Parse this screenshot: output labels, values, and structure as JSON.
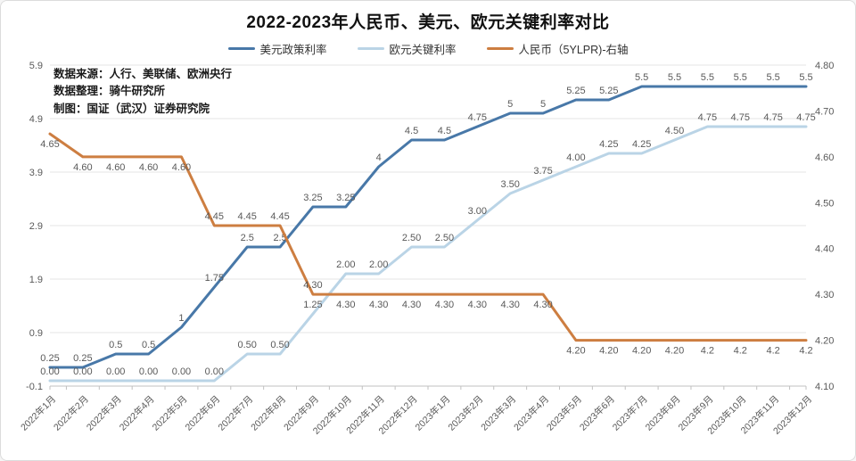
{
  "title": "2022-2023年人民币、美元、欧元关键利率对比",
  "annotation": {
    "source": "数据来源：人行、美联储、欧洲央行",
    "compiler": "数据整理：骑牛研究所",
    "author": "制图：国证（武汉）证券研究院"
  },
  "colors": {
    "usd_line": "#4878A8",
    "eur_line": "#BAD4E6",
    "rmb_line": "#CD7E41",
    "grid": "#E6E6E6",
    "axis": "#C0C0C0",
    "tick_text": "#595959",
    "label_text": "#595959"
  },
  "chart_data": {
    "type": "line",
    "title": "2022-2023年人民币、美元、欧元关键利率对比",
    "xlabel": "",
    "ylabel": "",
    "grid": "horizontal",
    "legend_position": "top",
    "categories": [
      "2022年1月",
      "2022年2月",
      "2022年3月",
      "2022年4月",
      "2022年5月",
      "2022年6月",
      "2022年7月",
      "2022年8月",
      "2022年9月",
      "2022年10月",
      "2022年11月",
      "2022年12月",
      "2023年1月",
      "2023年2月",
      "2023年3月",
      "2023年4月",
      "2023年5月",
      "2023年6月",
      "2023年7月",
      "2023年8月",
      "2023年9月",
      "2023年10月",
      "2023年11月",
      "2023年12月"
    ],
    "left_axis": {
      "min": -0.1,
      "max": 5.9,
      "ticks": [
        "5.9",
        "4.9",
        "3.9",
        "2.9",
        "1.9",
        "0.9",
        "-0.1"
      ]
    },
    "right_axis": {
      "min": 4.1,
      "max": 4.8,
      "ticks": [
        "4.80",
        "4.70",
        "4.60",
        "4.50",
        "4.40",
        "4.30",
        "4.20",
        "4.10"
      ]
    },
    "series": [
      {
        "name": "美元政策利率",
        "axis": "left",
        "color": "#4878A8",
        "label_pos": "above",
        "label_above_indices": [],
        "values": [
          0.25,
          0.25,
          0.5,
          0.5,
          1,
          1.75,
          2.5,
          2.5,
          3.25,
          3.25,
          4,
          4.5,
          4.5,
          4.75,
          5,
          5,
          5.25,
          5.25,
          5.5,
          5.5,
          5.5,
          5.5,
          5.5,
          5.5
        ],
        "labels": [
          "0.25",
          "0.25",
          "0.5",
          "0.5",
          "1",
          "1.75",
          "2.5",
          "2.5",
          "3.25",
          "3.25",
          "4",
          "4.5",
          "4.5",
          "4.75",
          "5",
          "5",
          "5.25",
          "5.25",
          "5.5",
          "5.5",
          "5.5",
          "5.5",
          "5.5",
          "5.5"
        ]
      },
      {
        "name": "欧元关键利率",
        "axis": "left",
        "color": "#BAD4E6",
        "label_pos": "above",
        "label_above_indices": [],
        "values": [
          0,
          0,
          0,
          0,
          0,
          0,
          0.5,
          0.5,
          1.25,
          2,
          2,
          2.5,
          2.5,
          3,
          3.5,
          3.75,
          4,
          4.25,
          4.25,
          4.5,
          4.75,
          4.75,
          4.75,
          4.75
        ],
        "labels": [
          "0.00",
          "0.00",
          "0.00",
          "0.00",
          "0.00",
          "0.00",
          "0.50",
          "0.50",
          "1.25",
          "2.00",
          "2.00",
          "2.50",
          "2.50",
          "3.00",
          "3.50",
          "3.75",
          "4.00",
          "4.25",
          "4.25",
          "4.50",
          "4.75",
          "4.75",
          "4.75",
          "4.75"
        ]
      },
      {
        "name": "人民币（5YLPR)-右轴",
        "axis": "right",
        "color": "#CD7E41",
        "label_pos": "below",
        "label_above_indices": [
          5,
          6,
          7,
          8
        ],
        "values": [
          4.65,
          4.6,
          4.6,
          4.6,
          4.6,
          4.45,
          4.45,
          4.45,
          4.3,
          4.3,
          4.3,
          4.3,
          4.3,
          4.3,
          4.3,
          4.3,
          4.2,
          4.2,
          4.2,
          4.2,
          4.2,
          4.2,
          4.2,
          4.2
        ],
        "labels": [
          "4.65",
          "4.60",
          "4.60",
          "4.60",
          "4.60",
          "4.45",
          "4.45",
          "4.45",
          "4.30",
          "4.30",
          "4.30",
          "4.30",
          "4.30",
          "4.30",
          "4.30",
          "4.30",
          "4.20",
          "4.20",
          "4.20",
          "4.20",
          "4.2",
          "4.2",
          "4.2",
          "4.2"
        ]
      }
    ]
  }
}
